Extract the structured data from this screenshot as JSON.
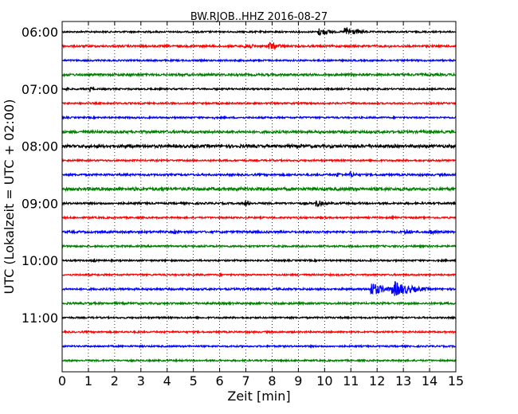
{
  "chart_data": {
    "type": "line",
    "title": "BW.RJOB..HHZ 2016-08-27",
    "xlabel": "Zeit  [min]",
    "ylabel": "UTC (Lokalzeit = UTC + 02:00)",
    "xlim": [
      0,
      15
    ],
    "x_ticks": [
      "0",
      "1",
      "2",
      "3",
      "4",
      "5",
      "6",
      "7",
      "8",
      "9",
      "10",
      "11",
      "12",
      "13",
      "14",
      "15"
    ],
    "y_ticks": [
      "06:00",
      "07:00",
      "08:00",
      "09:00",
      "10:00",
      "11:00"
    ],
    "grid": "vertical-dotted",
    "trace_minutes": 15,
    "colors": [
      "#000000",
      "#ff0000",
      "#0000ff",
      "#008000"
    ],
    "traces": [
      {
        "start": "06:00",
        "color": "#000000",
        "noise": 1.0,
        "events": [
          {
            "t": 9.8,
            "amp": 5.5,
            "dur": 1.2
          },
          {
            "t": 10.8,
            "amp": 6.5,
            "dur": 1.5
          }
        ]
      },
      {
        "start": "06:15",
        "color": "#ff0000",
        "noise": 1.2,
        "events": [
          {
            "t": 7.0,
            "amp": 5.0,
            "dur": 0.9
          },
          {
            "t": 7.9,
            "amp": 5.5,
            "dur": 1.3
          },
          {
            "t": 12.5,
            "amp": 2.0,
            "dur": 0.4
          }
        ]
      },
      {
        "start": "06:30",
        "color": "#0000ff",
        "noise": 1.0,
        "events": []
      },
      {
        "start": "06:45",
        "color": "#008000",
        "noise": 1.4,
        "events": [
          {
            "t": 4.3,
            "amp": 2.0,
            "dur": 0.5
          },
          {
            "t": 13.7,
            "amp": 2.0,
            "dur": 0.6
          }
        ]
      },
      {
        "start": "07:00",
        "color": "#000000",
        "noise": 1.0,
        "events": [
          {
            "t": 0.2,
            "amp": 2.5,
            "dur": 0.3
          },
          {
            "t": 1.1,
            "amp": 4.0,
            "dur": 0.3
          }
        ]
      },
      {
        "start": "07:15",
        "color": "#ff0000",
        "noise": 1.0,
        "events": []
      },
      {
        "start": "07:30",
        "color": "#0000ff",
        "noise": 1.0,
        "events": [
          {
            "t": 5.8,
            "amp": 1.8,
            "dur": 0.4
          }
        ]
      },
      {
        "start": "07:45",
        "color": "#008000",
        "noise": 1.5,
        "events": [
          {
            "t": 13.8,
            "amp": 1.8,
            "dur": 0.5
          }
        ]
      },
      {
        "start": "08:00",
        "color": "#000000",
        "noise": 1.8,
        "events": [
          {
            "t": 1.9,
            "amp": 2.2,
            "dur": 1.0
          }
        ]
      },
      {
        "start": "08:15",
        "color": "#ff0000",
        "noise": 1.0,
        "events": [
          {
            "t": 14.4,
            "amp": 2.0,
            "dur": 0.6
          }
        ]
      },
      {
        "start": "08:30",
        "color": "#0000ff",
        "noise": 1.2,
        "events": [
          {
            "t": 10.5,
            "amp": 3.0,
            "dur": 0.8
          },
          {
            "t": 11.0,
            "amp": 4.0,
            "dur": 0.8
          },
          {
            "t": 12.3,
            "amp": 2.0,
            "dur": 0.5
          }
        ]
      },
      {
        "start": "08:45",
        "color": "#008000",
        "noise": 1.8,
        "events": [
          {
            "t": 2.8,
            "amp": 2.5,
            "dur": 0.8
          },
          {
            "t": 3.8,
            "amp": 3.0,
            "dur": 0.8
          },
          {
            "t": 6.8,
            "amp": 2.5,
            "dur": 0.8
          }
        ]
      },
      {
        "start": "09:00",
        "color": "#000000",
        "noise": 1.2,
        "events": [
          {
            "t": 7.0,
            "amp": 4.5,
            "dur": 0.6
          },
          {
            "t": 9.7,
            "amp": 5.0,
            "dur": 0.9
          }
        ]
      },
      {
        "start": "09:15",
        "color": "#ff0000",
        "noise": 1.0,
        "events": [
          {
            "t": 12.6,
            "amp": 2.0,
            "dur": 0.6
          }
        ]
      },
      {
        "start": "09:30",
        "color": "#0000ff",
        "noise": 1.3,
        "events": [
          {
            "t": 4.3,
            "amp": 3.0,
            "dur": 0.5
          },
          {
            "t": 13.1,
            "amp": 4.0,
            "dur": 0.8
          },
          {
            "t": 14.0,
            "amp": 4.0,
            "dur": 0.8
          }
        ]
      },
      {
        "start": "09:45",
        "color": "#008000",
        "noise": 1.1,
        "events": []
      },
      {
        "start": "10:00",
        "color": "#000000",
        "noise": 1.0,
        "events": [
          {
            "t": 1.2,
            "amp": 4.0,
            "dur": 0.2
          }
        ]
      },
      {
        "start": "10:15",
        "color": "#ff0000",
        "noise": 1.0,
        "events": []
      },
      {
        "start": "10:30",
        "color": "#0000ff",
        "noise": 1.2,
        "events": [
          {
            "t": 11.8,
            "amp": 9.0,
            "dur": 1.5
          },
          {
            "t": 12.6,
            "amp": 11.0,
            "dur": 2.2
          }
        ]
      },
      {
        "start": "10:45",
        "color": "#008000",
        "noise": 1.2,
        "events": []
      },
      {
        "start": "11:00",
        "color": "#000000",
        "noise": 1.0,
        "events": []
      },
      {
        "start": "11:15",
        "color": "#ff0000",
        "noise": 1.0,
        "events": [
          {
            "t": 2.9,
            "amp": 2.0,
            "dur": 0.3
          }
        ]
      },
      {
        "start": "11:30",
        "color": "#0000ff",
        "noise": 1.0,
        "events": []
      },
      {
        "start": "11:45",
        "color": "#008000",
        "noise": 1.0,
        "events": []
      }
    ]
  }
}
